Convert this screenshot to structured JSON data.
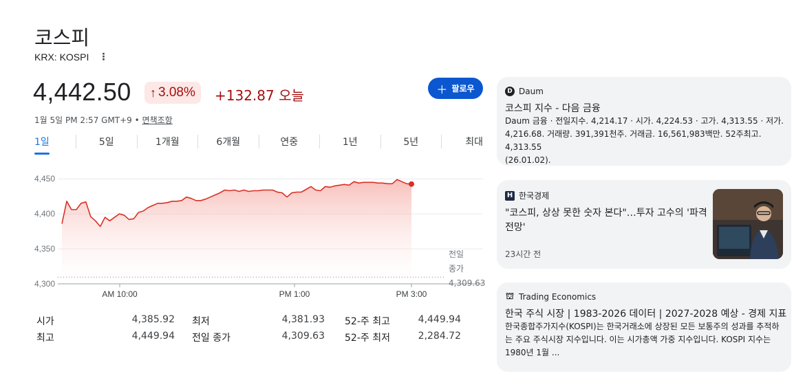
{
  "header": {
    "title": "코스피",
    "ticker": "KRX: KOSPI"
  },
  "quote": {
    "price": "4,442.50",
    "percent_change": "3.08%",
    "abs_change": "+132.87 오늘",
    "timestamp": "1월 5일 PM 2:57 GMT+9 •",
    "disclaimer": "면책조항",
    "follow_label": "팔로우",
    "change_color": "#a50e0e"
  },
  "tabs": [
    {
      "label": "1일",
      "active": true
    },
    {
      "label": "5일"
    },
    {
      "label": "1개월"
    },
    {
      "label": "6개월"
    },
    {
      "label": "연중"
    },
    {
      "label": "1년"
    },
    {
      "label": "5년"
    },
    {
      "label": "최대"
    }
  ],
  "chart_data": {
    "type": "area",
    "ylim": [
      4300,
      4460
    ],
    "y_ticks": [
      "4,450",
      "4,400",
      "4,350",
      "4,300"
    ],
    "x_ticks": [
      "AM 10:00",
      "PM 1:00",
      "PM 3:00"
    ],
    "previous_close_label": [
      "전일",
      "종가",
      "4,309.63"
    ],
    "previous_close": 4309.63,
    "line_color": "#d93025",
    "values": [
      4385.9,
      4418,
      4406,
      4406,
      4415,
      4417,
      4396,
      4390,
      4382,
      4395,
      4390,
      4395,
      4400,
      4398,
      4392,
      4393,
      4402,
      4404,
      4409,
      4412,
      4415,
      4415,
      4416,
      4418,
      4418,
      4419,
      4424,
      4422,
      4419,
      4419,
      4421,
      4424,
      4427,
      4430,
      4434,
      4433,
      4434,
      4432,
      4434,
      4432,
      4433,
      4433,
      4434,
      4434,
      4434,
      4431,
      4430,
      4424,
      4430,
      4431,
      4431,
      4435,
      4439,
      4434,
      4433,
      4439,
      4438,
      4440,
      4441,
      4442,
      4441,
      4446,
      4444,
      4445,
      4445,
      4445,
      4444,
      4444,
      4443,
      4443,
      4449,
      4446,
      4443,
      4442.5
    ]
  },
  "stats": [
    [
      {
        "label": "시가",
        "value": "4,385.92"
      },
      {
        "label": "최저",
        "value": "4,381.93"
      },
      {
        "label": "52-주 최고",
        "value": "4,449.94"
      }
    ],
    [
      {
        "label": "최고",
        "value": "4,449.94"
      },
      {
        "label": "전일 종가",
        "value": "4,309.63"
      },
      {
        "label": "52-주 최저",
        "value": "2,284.72"
      }
    ]
  ],
  "news": [
    {
      "source": "Daum",
      "logo_icon": "daum-logo-icon",
      "headline": "코스피 지수 - 다음 금융",
      "snippet_lines": [
        "Daum 금융 · 전일지수. 4,214.17 · 시가. 4,224.53 · 고가. 4,313.55 · 저가.",
        "4,216.68. 거래량. 391,391천주. 거래금. 16,561,983백만. 52주최고. 4,313.55",
        "(26.01.02)."
      ]
    },
    {
      "source": "한국경제",
      "logo_icon": "hankyung-logo-icon",
      "headline_lines": [
        "\"코스피, 상상 못한 숫자 본다\"…투자 고수의 '파격",
        "전망'"
      ],
      "time": "23시간 전",
      "thumbnail": "news-thumbnail-image"
    },
    {
      "source": "Trading Economics",
      "logo_icon": "trading-economics-logo-icon",
      "headline": "한국 주식 시장 | 1983-2026 데이터 | 2027-2028 예상 - 경제 지표",
      "snippet_lines": [
        "한국종합주가지수(KOSPI)는 한국거래소에 상장된 모든 보통주의 성과를 추적하",
        "는 주요 주식시장 지수입니다. 이는 시가총액 가중 지수입니다. KOSPI 지수는",
        "1980년 1월 ..."
      ]
    }
  ]
}
